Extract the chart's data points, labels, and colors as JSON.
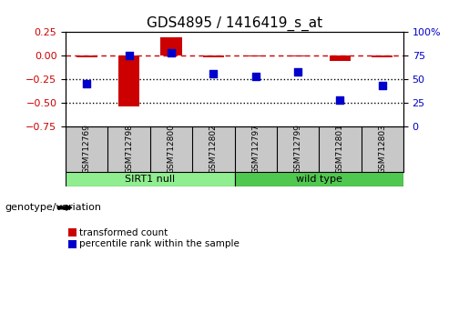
{
  "title": "GDS4895 / 1416419_s_at",
  "samples": [
    "GSM712769",
    "GSM712798",
    "GSM712800",
    "GSM712802",
    "GSM712797",
    "GSM712799",
    "GSM712801",
    "GSM712803"
  ],
  "transformed_count": [
    -0.02,
    -0.54,
    0.2,
    -0.02,
    -0.01,
    -0.01,
    -0.06,
    -0.02
  ],
  "percentile_rank": [
    45,
    75,
    78,
    56,
    53,
    58,
    28,
    43
  ],
  "groups": [
    {
      "label": "SIRT1 null",
      "start": 0,
      "end": 4,
      "color": "#90EE90"
    },
    {
      "label": "wild type",
      "start": 4,
      "end": 8,
      "color": "#50C850"
    }
  ],
  "group_label": "genotype/variation",
  "ylim_left": [
    -0.75,
    0.25
  ],
  "ylim_right": [
    0,
    100
  ],
  "yticks_left": [
    -0.75,
    -0.5,
    -0.25,
    0,
    0.25
  ],
  "yticks_right": [
    0,
    25,
    50,
    75,
    100
  ],
  "bar_color": "#CC0000",
  "scatter_color": "#0000CC",
  "dashed_line_color": "#CC0000",
  "dotted_line_color": "#000000",
  "background_color": "#FFFFFF",
  "title_fontsize": 11,
  "tick_fontsize": 8,
  "label_fontsize": 8,
  "legend_square_color_red": "#CC0000",
  "legend_square_color_blue": "#0000CC"
}
